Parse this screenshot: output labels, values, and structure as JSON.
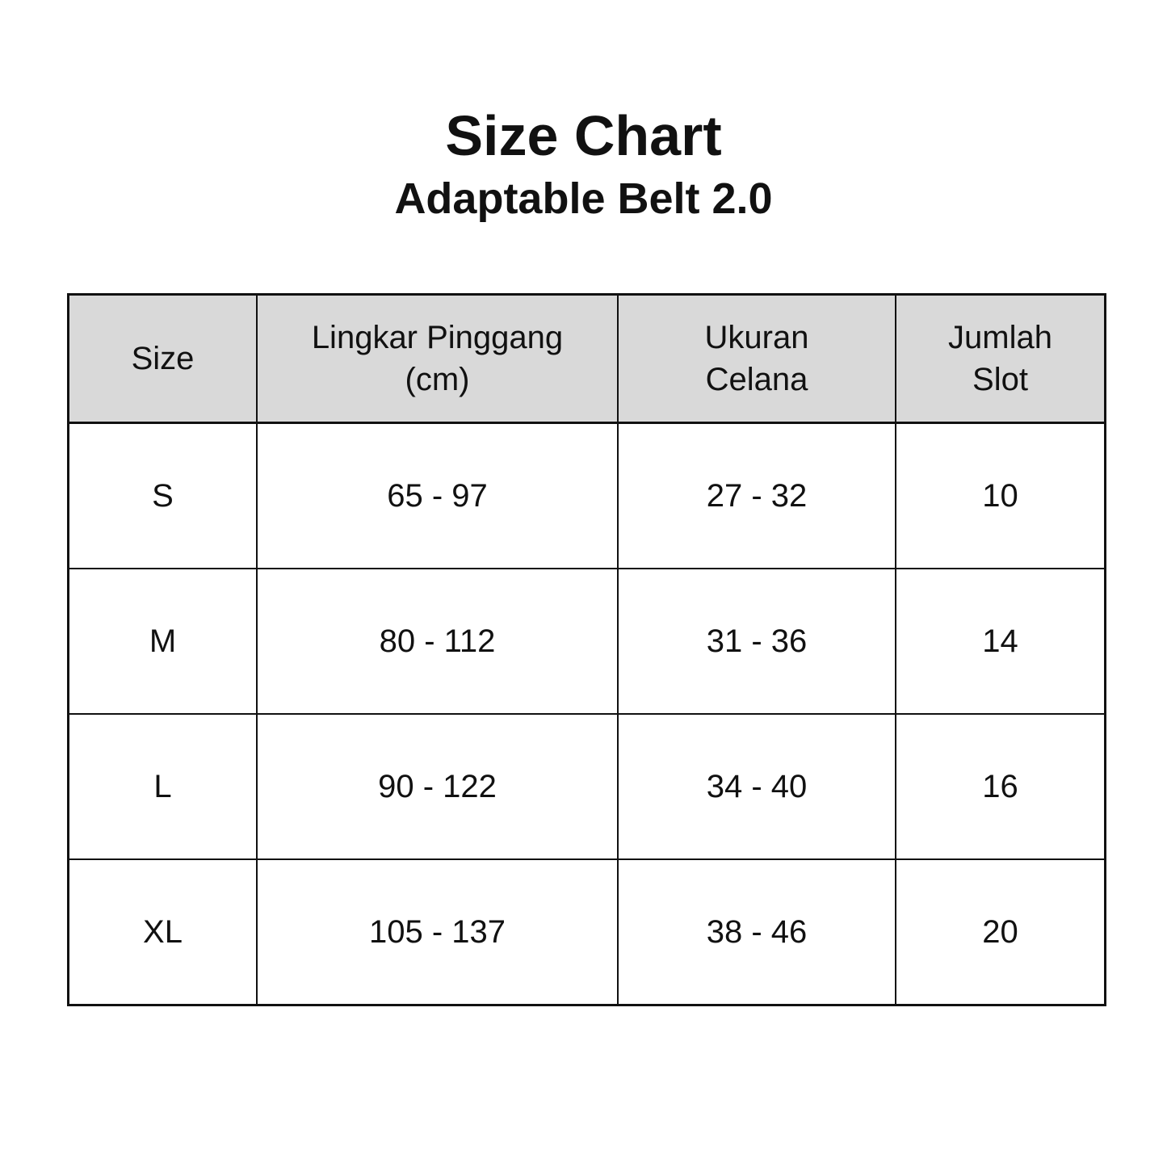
{
  "title": "Size Chart",
  "subtitle": "Adaptable Belt 2.0",
  "table": {
    "headers": [
      [
        "Size"
      ],
      [
        "Lingkar Pinggang",
        "(cm)"
      ],
      [
        "Ukuran",
        "Celana"
      ],
      [
        "Jumlah",
        "Slot"
      ]
    ],
    "rows": [
      [
        "S",
        "65 - 97",
        "27 - 32",
        "10"
      ],
      [
        "M",
        "80 - 112",
        "31 - 36",
        "14"
      ],
      [
        "L",
        "90 - 122",
        "34 - 40",
        "16"
      ],
      [
        "XL",
        "105 - 137",
        "38 - 46",
        "20"
      ]
    ]
  },
  "colors": {
    "header_bg": "#d9d9d9",
    "border": "#111111"
  }
}
